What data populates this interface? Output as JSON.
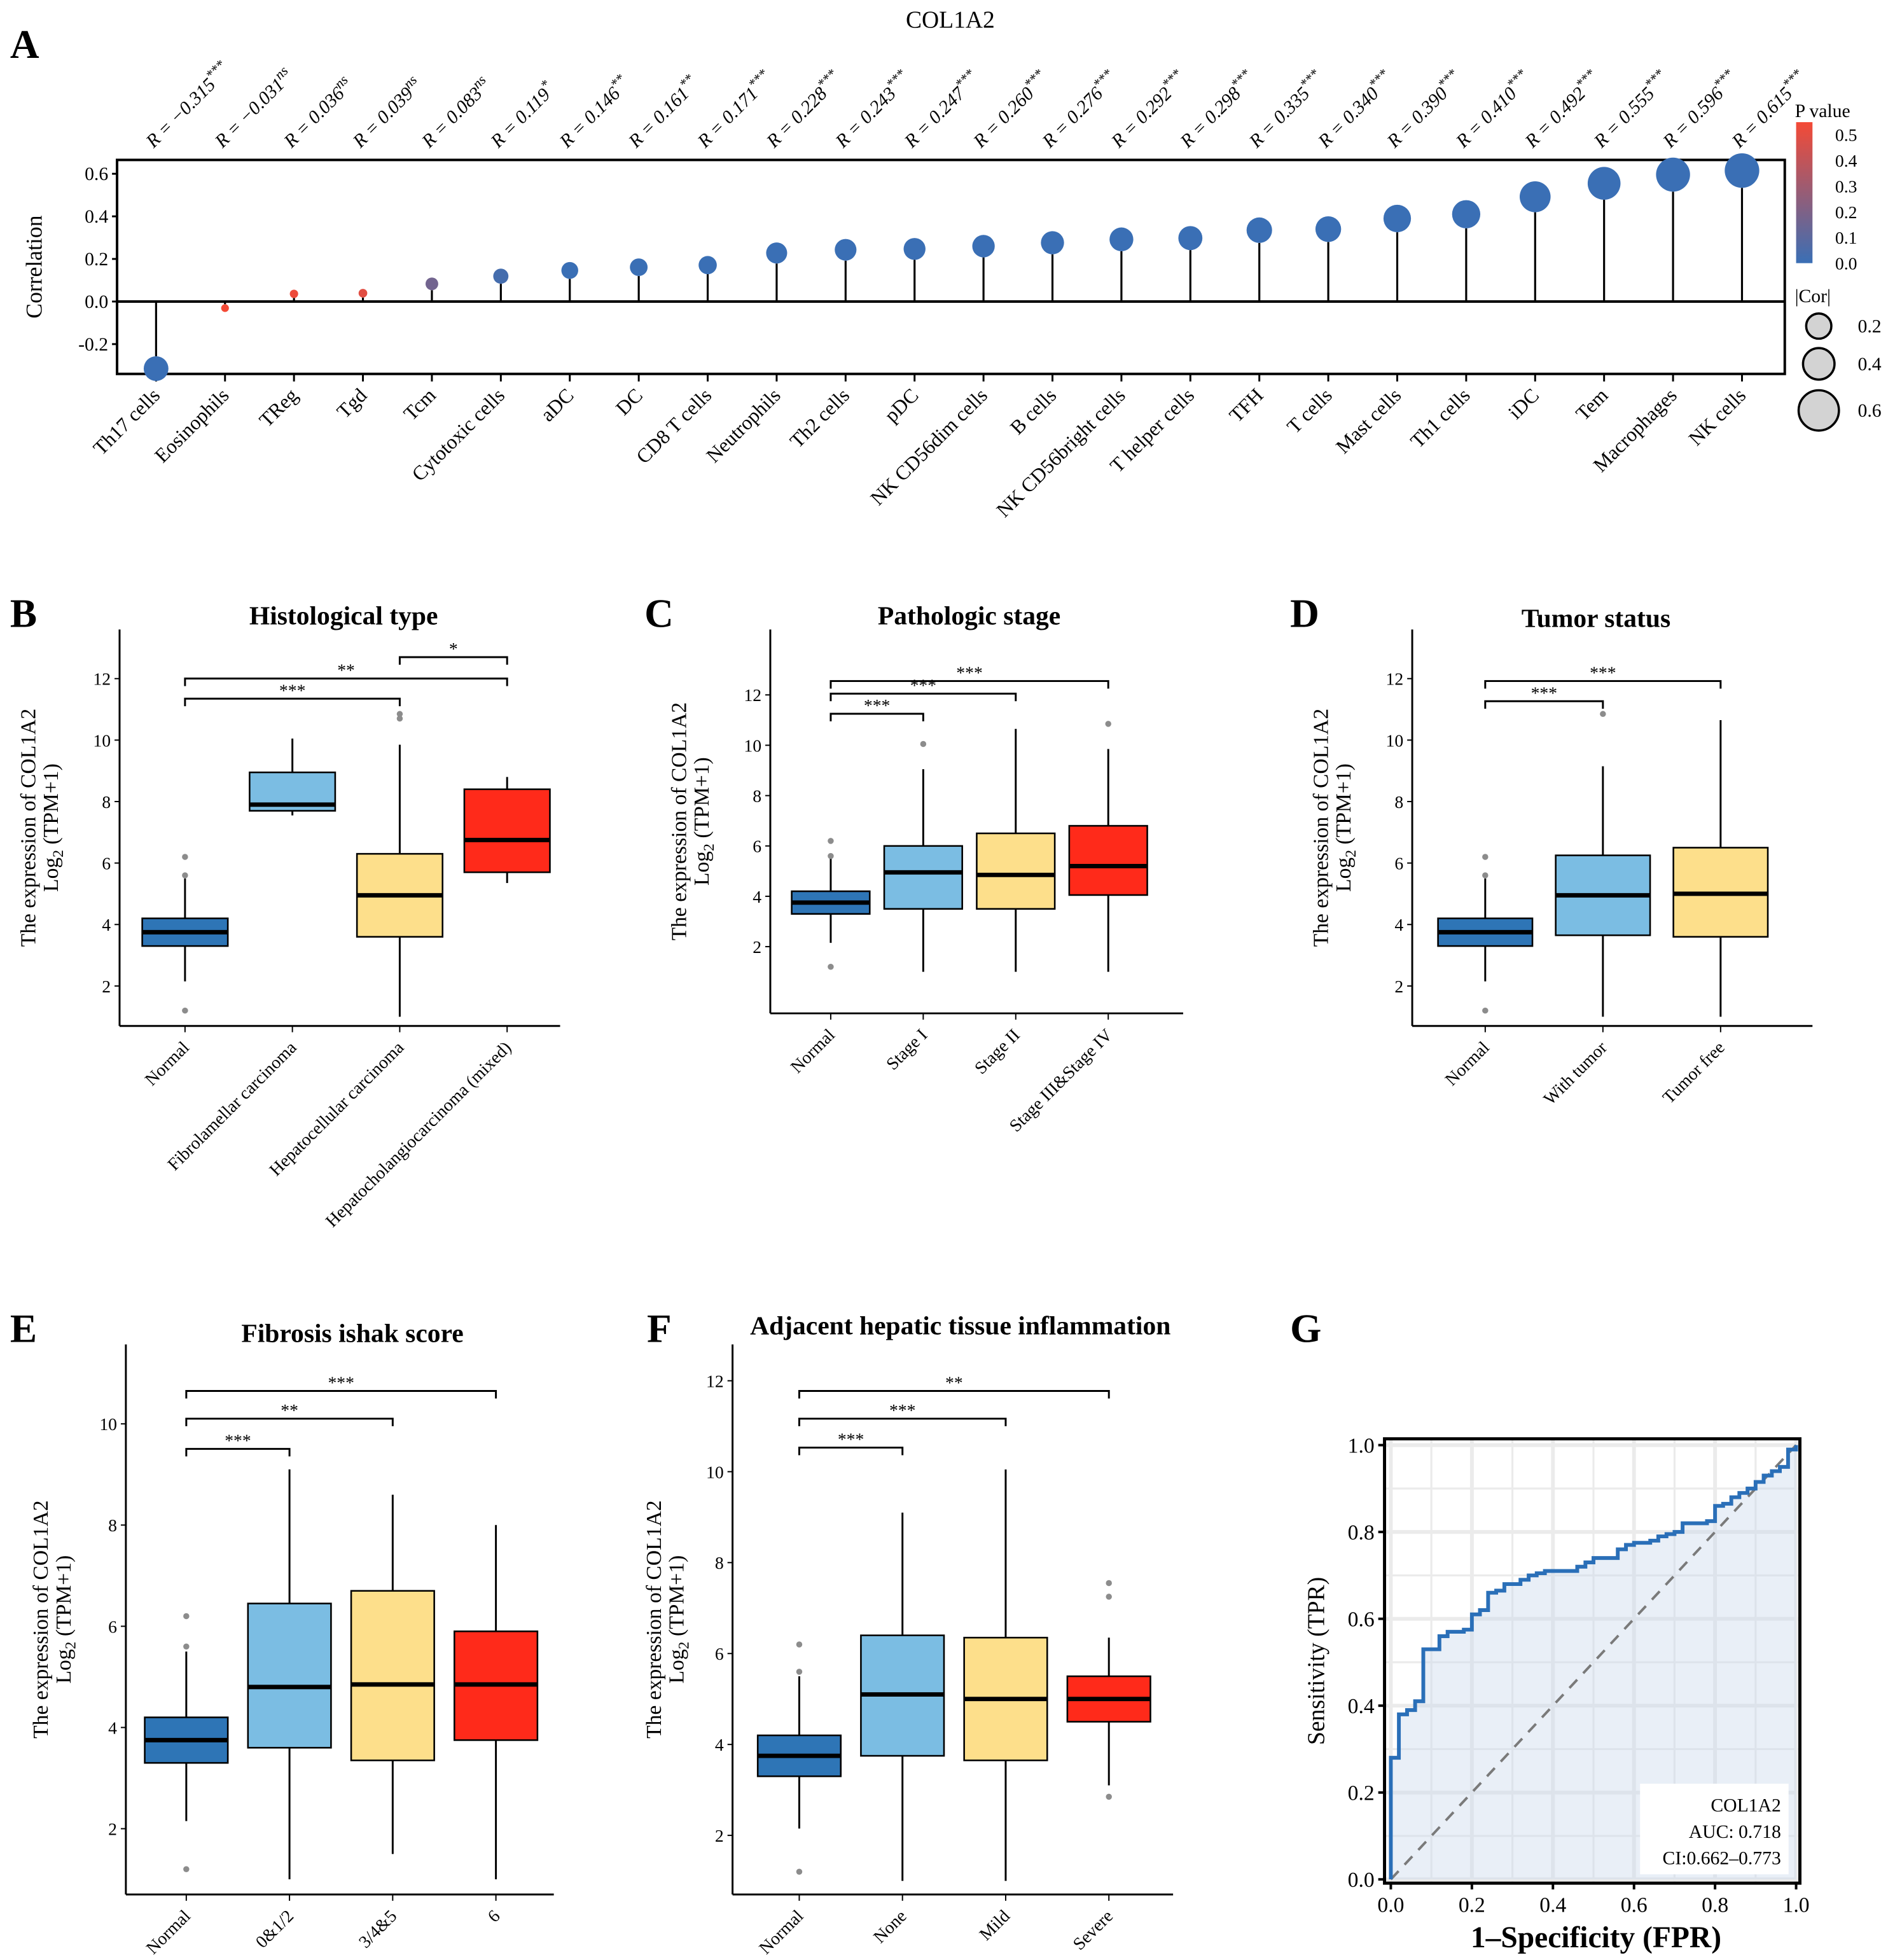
{
  "figure_title": "COL1A2",
  "chart_data": [
    {
      "panel": "A",
      "type": "scatter",
      "title": "COL1A2",
      "ylabel": "Correlation",
      "ylim": [
        -0.34,
        0.665
      ],
      "yticks": [
        -0.2,
        0.0,
        0.2,
        0.4,
        0.6
      ],
      "categories": [
        "Th17 cells",
        "Eosinophils",
        "TReg",
        "Tgd",
        "Tcm",
        "Cytotoxic cells",
        "aDC",
        "DC",
        "CD8 T cells",
        "Neutrophils",
        "Th2 cells",
        "pDC",
        "NK CD56dim cells",
        "B cells",
        "NK CD56bright cells",
        "T helper cells",
        "TFH",
        "T cells",
        "Mast cells",
        "Th1 cells",
        "iDC",
        "Tem",
        "Macrophages",
        "NK cells"
      ],
      "values": [
        -0.315,
        -0.031,
        0.036,
        0.039,
        0.083,
        0.119,
        0.146,
        0.161,
        0.171,
        0.228,
        0.243,
        0.247,
        0.26,
        0.276,
        0.292,
        0.298,
        0.335,
        0.34,
        0.39,
        0.41,
        0.492,
        0.555,
        0.596,
        0.615
      ],
      "r_labels": [
        "R = −0.315",
        "R = −0.031",
        "R = 0.036",
        "R = 0.039",
        "R = 0.083",
        "R = 0.119",
        "R = 0.146",
        "R = 0.161",
        "R = 0.171",
        "R = 0.228",
        "R = 0.243",
        "R = 0.247",
        "R = 0.260",
        "R = 0.276",
        "R = 0.292",
        "R = 0.298",
        "R = 0.335",
        "R = 0.340",
        "R = 0.390",
        "R = 0.410",
        "R = 0.492",
        "R = 0.555",
        "R = 0.596",
        "R = 0.615"
      ],
      "significance": [
        "***",
        "ns",
        "ns",
        "ns",
        "ns",
        "*",
        "**",
        "**",
        "***",
        "***",
        "***",
        "***",
        "***",
        "***",
        "***",
        "***",
        "***",
        "***",
        "***",
        "***",
        "***",
        "***",
        "***",
        "***"
      ],
      "p_values": [
        0,
        0.55,
        0.48,
        0.45,
        0.15,
        0.03,
        0,
        0,
        0,
        0,
        0,
        0,
        0,
        0,
        0,
        0,
        0,
        0,
        0,
        0,
        0,
        0,
        0,
        0
      ],
      "color_legend": {
        "title": "P value",
        "ticks": [
          "0.5",
          "0.4",
          "0.3",
          "0.2",
          "0.1",
          "0.0"
        ],
        "low_color": "#3a6fb5",
        "high_color": "#f44a36"
      },
      "size_legend": {
        "title": "|Cor|",
        "ticks": [
          "0.2",
          "0.4",
          "0.6"
        ]
      }
    },
    {
      "panel": "B",
      "type": "box",
      "title": "Histological type",
      "ylabel_line1": "The expression  of COL1A2",
      "ylabel_line2": "Log",
      "ylabel_sub": "2",
      "ylabel_line2_rest": " (TPM+1)",
      "ylim": [
        0.7,
        13.6
      ],
      "yticks": [
        2,
        4,
        6,
        8,
        10,
        12
      ],
      "groups": [
        {
          "name": "Normal",
          "q1": 3.3,
          "median": 3.75,
          "q3": 4.2,
          "low": 2.15,
          "high": 5.5,
          "outliers": [
            1.2,
            5.6,
            6.2
          ],
          "color": "#2e75b6"
        },
        {
          "name": "Fibrolamellar carcinoma",
          "q1": 7.7,
          "median": 7.9,
          "q3": 8.95,
          "low": 7.55,
          "high": 10.05,
          "outliers": [],
          "color": "#7bbde3"
        },
        {
          "name": "Hepatocellular carcinoma",
          "q1": 3.6,
          "median": 4.95,
          "q3": 6.3,
          "low": 1.0,
          "high": 9.85,
          "outliers": [
            10.7,
            10.85
          ],
          "color": "#fddf8b"
        },
        {
          "name": "Hepatocholangiocarcinoma (mixed)",
          "q1": 5.7,
          "median": 6.75,
          "q3": 8.4,
          "low": 5.35,
          "high": 8.8,
          "outliers": [],
          "color": "#ff2a1a"
        }
      ],
      "comparisons": [
        {
          "from": 2,
          "to": 3,
          "label": "*"
        },
        {
          "from": 0,
          "to": 3,
          "label": "**"
        },
        {
          "from": 0,
          "to": 2,
          "label": "***"
        }
      ]
    },
    {
      "panel": "C",
      "type": "box",
      "title": "Pathologic stage",
      "ylabel_line1": "The expression  of COL1A2",
      "ylabel_line2": "Log",
      "ylabel_sub": "2",
      "ylabel_line2_rest": " (TPM+1)",
      "ylim": [
        -0.65,
        14.6
      ],
      "yticks": [
        2,
        4,
        6,
        8,
        10,
        12
      ],
      "groups": [
        {
          "name": "Normal",
          "q1": 3.3,
          "median": 3.75,
          "q3": 4.2,
          "low": 2.15,
          "high": 5.5,
          "outliers": [
            1.2,
            5.6,
            6.2
          ],
          "color": "#2e75b6"
        },
        {
          "name": "Stage I",
          "q1": 3.5,
          "median": 4.95,
          "q3": 6.0,
          "low": 1.0,
          "high": 9.05,
          "outliers": [
            10.05
          ],
          "color": "#7bbde3"
        },
        {
          "name": "Stage II",
          "q1": 3.5,
          "median": 4.85,
          "q3": 6.5,
          "low": 1.0,
          "high": 10.65,
          "outliers": [],
          "color": "#fddf8b"
        },
        {
          "name": "Stage III&Stage IV",
          "q1": 4.05,
          "median": 5.2,
          "q3": 6.8,
          "low": 1.0,
          "high": 9.85,
          "outliers": [
            10.85
          ],
          "color": "#ff2a1a"
        }
      ],
      "comparisons": [
        {
          "from": 0,
          "to": 3,
          "label": "***"
        },
        {
          "from": 0,
          "to": 2,
          "label": "***"
        },
        {
          "from": 0,
          "to": 1,
          "label": "***"
        }
      ]
    },
    {
      "panel": "D",
      "type": "box",
      "title": "Tumor status",
      "ylabel_line1": "The expression  of COL1A2",
      "ylabel_line2": "Log",
      "ylabel_sub": "2",
      "ylabel_line2_rest": " (TPM+1)",
      "ylim": [
        0.7,
        13.6
      ],
      "yticks": [
        2,
        4,
        6,
        8,
        10,
        12
      ],
      "groups": [
        {
          "name": "Normal",
          "q1": 3.3,
          "median": 3.75,
          "q3": 4.2,
          "low": 2.15,
          "high": 5.5,
          "outliers": [
            1.2,
            5.6,
            6.2
          ],
          "color": "#2e75b6"
        },
        {
          "name": "With tumor",
          "q1": 3.65,
          "median": 4.95,
          "q3": 6.25,
          "low": 1.0,
          "high": 9.15,
          "outliers": [
            10.85
          ],
          "color": "#7bbde3"
        },
        {
          "name": "Tumor free",
          "q1": 3.6,
          "median": 5.0,
          "q3": 6.5,
          "low": 1.0,
          "high": 10.65,
          "outliers": [],
          "color": "#fddf8b"
        }
      ],
      "comparisons": [
        {
          "from": 0,
          "to": 2,
          "label": "***"
        },
        {
          "from": 0,
          "to": 1,
          "label": "***"
        }
      ]
    },
    {
      "panel": "E",
      "type": "box",
      "title": "Fibrosis ishak score",
      "ylabel_line1": "The expression  of COL1A2",
      "ylabel_line2": "Log",
      "ylabel_sub": "2",
      "ylabel_line2_rest": " (TPM+1)",
      "ylim": [
        0.7,
        11.57
      ],
      "yticks": [
        2,
        4,
        6,
        8,
        10
      ],
      "groups": [
        {
          "name": "Normal",
          "q1": 3.3,
          "median": 3.75,
          "q3": 4.2,
          "low": 2.15,
          "high": 5.5,
          "outliers": [
            1.2,
            5.6,
            6.2
          ],
          "color": "#2e75b6"
        },
        {
          "name": "0&1/2",
          "q1": 3.6,
          "median": 4.8,
          "q3": 6.45,
          "low": 1.0,
          "high": 9.1,
          "outliers": [],
          "color": "#7bbde3"
        },
        {
          "name": "3/4&5",
          "q1": 3.35,
          "median": 4.85,
          "q3": 6.7,
          "low": 1.5,
          "high": 8.6,
          "outliers": [],
          "color": "#fddf8b"
        },
        {
          "name": "6",
          "q1": 3.75,
          "median": 4.85,
          "q3": 5.9,
          "low": 1.0,
          "high": 8.0,
          "outliers": [],
          "color": "#ff2a1a"
        }
      ],
      "comparisons": [
        {
          "from": 0,
          "to": 3,
          "label": "***"
        },
        {
          "from": 0,
          "to": 2,
          "label": "**"
        },
        {
          "from": 0,
          "to": 1,
          "label": "***"
        }
      ]
    },
    {
      "panel": "F",
      "type": "box",
      "title": "Adjacent hepatic tissue inflammation",
      "ylabel_line1": "The expression  of COL1A2",
      "ylabel_line2": "Log",
      "ylabel_sub": "2",
      "ylabel_line2_rest": " (TPM+1)",
      "ylim": [
        0.7,
        12.8
      ],
      "yticks": [
        2,
        4,
        6,
        8,
        10,
        12
      ],
      "groups": [
        {
          "name": "Normal",
          "q1": 3.3,
          "median": 3.75,
          "q3": 4.2,
          "low": 2.15,
          "high": 5.5,
          "outliers": [
            1.2,
            5.6,
            6.2
          ],
          "color": "#2e75b6"
        },
        {
          "name": "None",
          "q1": 3.75,
          "median": 5.1,
          "q3": 6.4,
          "low": 1.0,
          "high": 9.1,
          "outliers": [],
          "color": "#7bbde3"
        },
        {
          "name": "Mild",
          "q1": 3.65,
          "median": 5.0,
          "q3": 6.35,
          "low": 1.0,
          "high": 10.05,
          "outliers": [],
          "color": "#fddf8b"
        },
        {
          "name": "Severe",
          "q1": 4.5,
          "median": 5.0,
          "q3": 5.5,
          "low": 3.1,
          "high": 6.35,
          "outliers": [
            2.85,
            7.25,
            7.55
          ],
          "color": "#ff2a1a"
        }
      ],
      "comparisons": [
        {
          "from": 0,
          "to": 3,
          "label": "**"
        },
        {
          "from": 0,
          "to": 2,
          "label": "***"
        },
        {
          "from": 0,
          "to": 1,
          "label": "***"
        }
      ]
    },
    {
      "panel": "G",
      "type": "line",
      "xlabel": "1–Specificity (FPR)",
      "ylabel": "Sensitivity (TPR)",
      "xlim": [
        0,
        1
      ],
      "ylim": [
        0,
        1
      ],
      "xticks": [
        "0.0",
        "0.2",
        "0.4",
        "0.6",
        "0.8",
        "1.0"
      ],
      "yticks": [
        "0.0",
        "0.2",
        "0.4",
        "0.6",
        "0.8",
        "1.0"
      ],
      "legend": [
        "COL1A2",
        "AUC: 0.718",
        "CI:0.662–0.773"
      ],
      "line_color": "#2a6fb8",
      "fpr": [
        0,
        0,
        0.02,
        0.02,
        0.04,
        0.04,
        0.06,
        0.06,
        0.08,
        0.08,
        0.12,
        0.12,
        0.14,
        0.14,
        0.18,
        0.18,
        0.2,
        0.2,
        0.22,
        0.22,
        0.24,
        0.24,
        0.26,
        0.26,
        0.28,
        0.28,
        0.32,
        0.32,
        0.34,
        0.34,
        0.36,
        0.36,
        0.38,
        0.38,
        0.46,
        0.46,
        0.48,
        0.48,
        0.5,
        0.5,
        0.56,
        0.56,
        0.58,
        0.58,
        0.6,
        0.6,
        0.64,
        0.64,
        0.66,
        0.66,
        0.68,
        0.68,
        0.7,
        0.7,
        0.72,
        0.72,
        0.78,
        0.78,
        0.8,
        0.8,
        0.82,
        0.82,
        0.84,
        0.84,
        0.86,
        0.86,
        0.88,
        0.88,
        0.9,
        0.9,
        0.92,
        0.92,
        0.94,
        0.94,
        0.96,
        0.96,
        0.98,
        0.98,
        1,
        1
      ],
      "tpr": [
        0,
        0.28,
        0.28,
        0.38,
        0.38,
        0.39,
        0.39,
        0.41,
        0.41,
        0.53,
        0.53,
        0.56,
        0.56,
        0.57,
        0.57,
        0.575,
        0.575,
        0.61,
        0.61,
        0.62,
        0.62,
        0.66,
        0.66,
        0.665,
        0.665,
        0.68,
        0.68,
        0.69,
        0.69,
        0.7,
        0.7,
        0.705,
        0.705,
        0.71,
        0.71,
        0.72,
        0.72,
        0.73,
        0.73,
        0.74,
        0.74,
        0.76,
        0.76,
        0.77,
        0.77,
        0.775,
        0.775,
        0.78,
        0.78,
        0.79,
        0.79,
        0.795,
        0.795,
        0.8,
        0.8,
        0.82,
        0.82,
        0.825,
        0.825,
        0.86,
        0.86,
        0.865,
        0.865,
        0.88,
        0.88,
        0.89,
        0.89,
        0.9,
        0.9,
        0.915,
        0.915,
        0.93,
        0.93,
        0.94,
        0.94,
        0.95,
        0.95,
        0.99,
        0.99,
        1
      ]
    }
  ]
}
